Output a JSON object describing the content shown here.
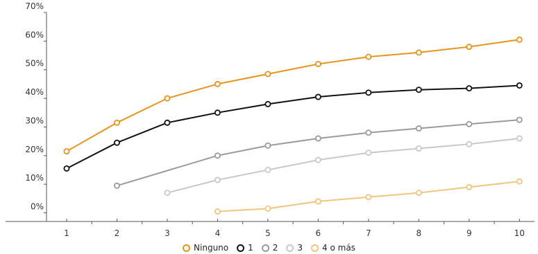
{
  "chart_data": {
    "type": "line",
    "title": "",
    "xlabel": "",
    "ylabel": "",
    "x": [
      1,
      2,
      3,
      4,
      5,
      6,
      7,
      8,
      9,
      10
    ],
    "x_tick_labels": [
      "1",
      "2",
      "3",
      "4",
      "5",
      "6",
      "7",
      "8",
      "9",
      "10"
    ],
    "y_tick_labels": [
      "0%",
      "10%",
      "20%",
      "30%",
      "40%",
      "50%",
      "60%",
      "70%"
    ],
    "ylim": [
      -3,
      70
    ],
    "xlim": [
      0.6,
      10.3
    ],
    "grid": false,
    "legend_position": "bottom",
    "series": [
      {
        "name": "Ninguno",
        "color": "#E8941A",
        "x": [
          1,
          2,
          3,
          4,
          5,
          6,
          7,
          8,
          9,
          10
        ],
        "values": [
          21.5,
          31.5,
          40,
          45,
          48.5,
          52,
          54.5,
          56,
          58,
          60.5
        ]
      },
      {
        "name": "1",
        "color": "#111111",
        "x": [
          1,
          2,
          3,
          4,
          5,
          6,
          7,
          8,
          9,
          10
        ],
        "values": [
          15.5,
          24.5,
          31.5,
          35,
          38,
          40.5,
          42,
          43,
          43.5,
          44.5
        ]
      },
      {
        "name": "2",
        "color": "#9A9A9A",
        "x": [
          2,
          4,
          5,
          6,
          7,
          8,
          9,
          10
        ],
        "values": [
          9.5,
          20,
          23.5,
          26,
          28,
          29.5,
          31,
          32.5
        ]
      },
      {
        "name": "3",
        "color": "#C8C8C8",
        "x": [
          3,
          4,
          5,
          6,
          7,
          8,
          9,
          10
        ],
        "values": [
          7,
          11.5,
          15,
          18.5,
          21,
          22.5,
          24,
          26
        ]
      },
      {
        "name": "4 o más",
        "color": "#F2C47C",
        "x": [
          4,
          5,
          6,
          7,
          8,
          9,
          10
        ],
        "values": [
          0.5,
          1.5,
          4,
          5.5,
          7,
          9,
          11
        ]
      }
    ]
  }
}
